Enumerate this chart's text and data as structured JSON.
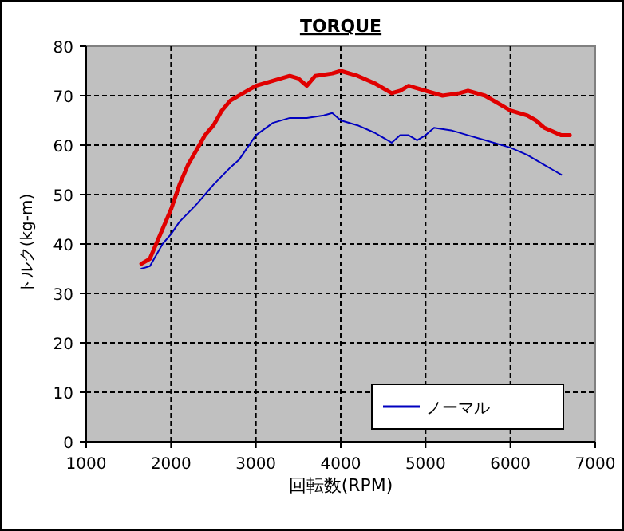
{
  "chart_data": {
    "type": "line",
    "title": "TORQUE",
    "xlabel": "回転数(RPM)",
    "ylabel": "トルク(kg-m)",
    "xlim": [
      1000,
      7000
    ],
    "ylim": [
      0,
      80
    ],
    "xticks": [
      1000,
      2000,
      3000,
      4000,
      5000,
      6000,
      7000
    ],
    "yticks": [
      0,
      10,
      20,
      30,
      40,
      50,
      60,
      70,
      80
    ],
    "grid": true,
    "legend": "bottom right",
    "series": [
      {
        "color": "#e00000",
        "x": [
          1650,
          1750,
          1850,
          2000,
          2100,
          2200,
          2300,
          2400,
          2500,
          2600,
          2700,
          2850,
          3000,
          3200,
          3400,
          3500,
          3600,
          3700,
          3900,
          4000,
          4200,
          4400,
          4600,
          4700,
          4800,
          5000,
          5200,
          5400,
          5500,
          5700,
          5900,
          6000,
          6200,
          6300,
          6400,
          6600,
          6700
        ],
        "values": [
          36,
          37,
          41,
          47,
          52,
          56,
          59,
          62,
          64,
          67,
          69,
          70.5,
          72,
          73,
          74,
          73.5,
          72,
          74,
          74.5,
          75,
          74,
          72.5,
          70.5,
          71,
          72,
          71,
          70,
          70.5,
          71,
          70,
          68,
          67,
          66,
          65,
          63.5,
          62,
          62
        ]
      },
      {
        "name": "ノーマル",
        "color": "#0000c0",
        "x": [
          1650,
          1750,
          1900,
          2000,
          2100,
          2300,
          2500,
          2700,
          2800,
          3000,
          3200,
          3400,
          3600,
          3800,
          3900,
          4000,
          4200,
          4400,
          4500,
          4600,
          4700,
          4800,
          4900,
          5000,
          5100,
          5300,
          5500,
          5700,
          6000,
          6200,
          6400,
          6500,
          6600
        ],
        "values": [
          35,
          35.5,
          40,
          42,
          44.5,
          48,
          52,
          55.5,
          57,
          62,
          64.5,
          65.5,
          65.5,
          66,
          66.5,
          65,
          64,
          62.5,
          61.5,
          60.5,
          62,
          62,
          61,
          62,
          63.5,
          63,
          62,
          61,
          59.5,
          58,
          56,
          55,
          54
        ]
      }
    ]
  }
}
